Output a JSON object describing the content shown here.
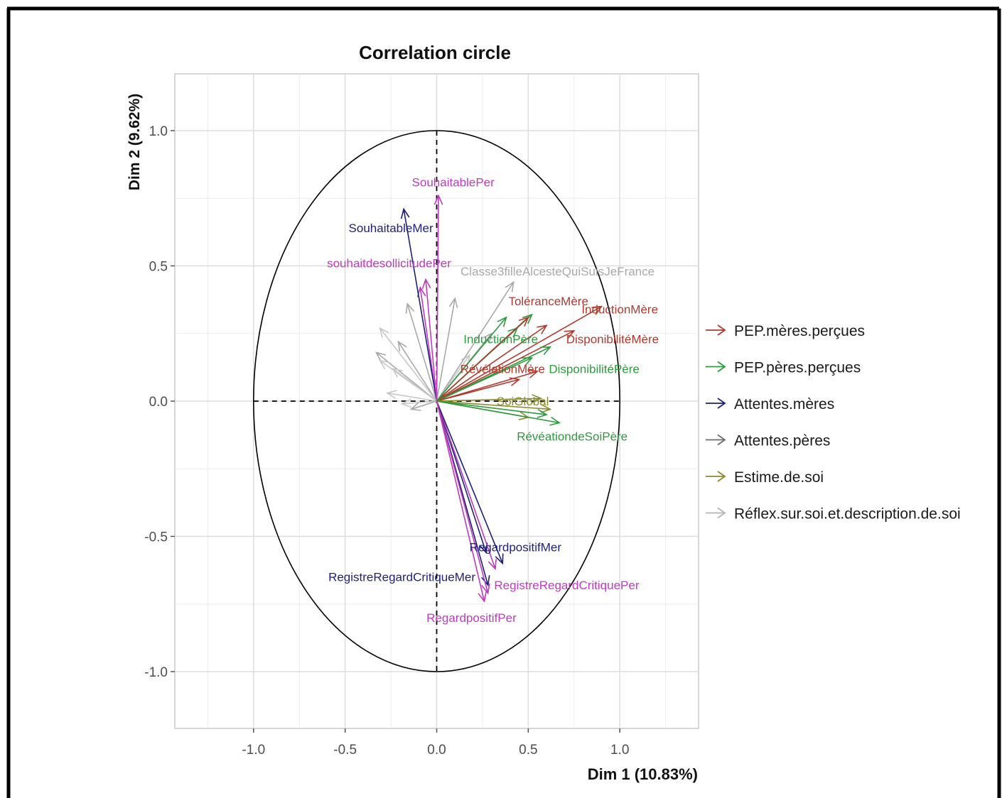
{
  "chart_data": {
    "type": "scatter",
    "title": "Correlation circle",
    "xlabel": "Dim 1 (10.83%)",
    "ylabel": "Dim 2 (9.62%)",
    "xlim": [
      -1.43,
      1.43
    ],
    "ylim": [
      -1.21,
      1.21
    ],
    "x_ticks": [
      "-1.0",
      "-0.5",
      "0.0",
      "0.5",
      "1.0"
    ],
    "y_ticks": [
      "1.0",
      "0.5",
      "0.0",
      "-0.5",
      "-1.0"
    ],
    "grid": true,
    "legend_position": "right",
    "groups": [
      {
        "name": "PEP.mères.perçues",
        "color": "#b03a2e"
      },
      {
        "name": "PEP.pères.perçues",
        "color": "#2e9a3e"
      },
      {
        "name": "Attentes.mères",
        "color": "#1d1f7a"
      },
      {
        "name": "Attentes.pères",
        "color": "#6d6d6d"
      },
      {
        "name": "Estime.de.soi",
        "color": "#8a8a2e"
      },
      {
        "name": "Réflex.sur.soi.et.description.de.soi",
        "color": "#b4b4b4"
      }
    ],
    "variables": [
      {
        "label": "SouhaitablePer",
        "x": 0.01,
        "y": 0.76,
        "color": "#c03ac0",
        "lx": 0.09,
        "ly": 0.81
      },
      {
        "label": "SouhaitableMer",
        "x": -0.18,
        "y": 0.71,
        "color": "#1d1f7a",
        "lx": -0.25,
        "ly": 0.64
      },
      {
        "label": "souhaitdesollicitudePer",
        "x": -0.06,
        "y": 0.45,
        "color": "#c03ac0",
        "lx": -0.26,
        "ly": 0.51
      },
      {
        "label": "Classe3filleAlcesteQuiSuisJeFrance",
        "x": 0.42,
        "y": 0.44,
        "color": "#a9a9a9",
        "lx": 0.66,
        "ly": 0.48
      },
      {
        "label": "ToléranceMère",
        "x": 0.5,
        "y": 0.31,
        "color": "#b03a2e",
        "lx": 0.61,
        "ly": 0.37
      },
      {
        "label": "InductionMère",
        "x": 0.9,
        "y": 0.35,
        "color": "#b03a2e",
        "lx": 1.0,
        "ly": 0.34
      },
      {
        "label": "DisponibilitéMère",
        "x": 0.75,
        "y": 0.26,
        "color": "#b03a2e",
        "lx": 0.96,
        "ly": 0.23
      },
      {
        "label": "InductionPère",
        "x": 0.38,
        "y": 0.31,
        "color": "#2e9a3e",
        "lx": 0.35,
        "ly": 0.23
      },
      {
        "label": "DisponibilitéPère",
        "x": 0.62,
        "y": 0.2,
        "color": "#2e9a3e",
        "lx": 0.86,
        "ly": 0.12
      },
      {
        "label": "RévélationMère",
        "x": 0.55,
        "y": 0.11,
        "color": "#b03a2e",
        "lx": 0.36,
        "ly": 0.12
      },
      {
        "label": "SoiGlobal",
        "x": 0.57,
        "y": 0.01,
        "color": "#8a8a2e",
        "lx": 0.47,
        "ly": 0.0
      },
      {
        "label": "RévéationdeSoiPère",
        "x": 0.67,
        "y": -0.08,
        "color": "#2e9a3e",
        "lx": 0.74,
        "ly": -0.13
      },
      {
        "label": "RegardpositifMer",
        "x": 0.36,
        "y": -0.6,
        "color": "#1d1f7a",
        "lx": 0.43,
        "ly": -0.54
      },
      {
        "label": "RegistreRegardCritiqueMer",
        "x": 0.28,
        "y": -0.68,
        "color": "#1d1f7a",
        "lx": -0.19,
        "ly": -0.65
      },
      {
        "label": "RegistreRegardCritiquePer",
        "x": 0.28,
        "y": -0.71,
        "color": "#c03ac0",
        "lx": 0.71,
        "ly": -0.68
      },
      {
        "label": "RegardpositifPer",
        "x": 0.26,
        "y": -0.74,
        "color": "#c03ac0",
        "lx": 0.19,
        "ly": -0.8
      }
    ],
    "unlabeled_vectors": [
      {
        "x": 0.52,
        "y": 0.32,
        "color": "#2e9a3e"
      },
      {
        "x": 0.44,
        "y": 0.27,
        "color": "#2e9a3e"
      },
      {
        "x": 0.6,
        "y": 0.28,
        "color": "#b03a2e"
      },
      {
        "x": 0.52,
        "y": 0.16,
        "color": "#2e9a3e"
      },
      {
        "x": 0.45,
        "y": 0.08,
        "color": "#b03a2e"
      },
      {
        "x": 0.62,
        "y": -0.03,
        "color": "#8a8a2e"
      },
      {
        "x": 0.5,
        "y": -0.06,
        "color": "#8a8a2e"
      },
      {
        "x": 0.6,
        "y": -0.05,
        "color": "#2e9a3e"
      },
      {
        "x": 0.1,
        "y": 0.38,
        "color": "#a9a9a9"
      },
      {
        "x": 0.3,
        "y": 0.25,
        "color": "#a9a9a9"
      },
      {
        "x": -0.16,
        "y": 0.36,
        "color": "#a9a9a9"
      },
      {
        "x": -0.09,
        "y": 0.42,
        "color": "#c03ac0"
      },
      {
        "x": -0.21,
        "y": 0.22,
        "color": "#a9a9a9"
      },
      {
        "x": -0.31,
        "y": 0.27,
        "color": "#c8c8c8"
      },
      {
        "x": -0.33,
        "y": 0.18,
        "color": "#a9a9a9"
      },
      {
        "x": -0.31,
        "y": 0.15,
        "color": "#c8c8c8"
      },
      {
        "x": -0.24,
        "y": 0.12,
        "color": "#c8c8c8"
      },
      {
        "x": -0.27,
        "y": 0.03,
        "color": "#c8c8c8"
      },
      {
        "x": -0.19,
        "y": -0.01,
        "color": "#c8c8c8"
      },
      {
        "x": -0.14,
        "y": -0.03,
        "color": "#a9a9a9"
      },
      {
        "x": 0.18,
        "y": 0.17,
        "color": "#c8c8c8"
      },
      {
        "x": 0.27,
        "y": -0.56,
        "color": "#1d1f7a"
      },
      {
        "x": 0.32,
        "y": -0.62,
        "color": "#c03ac0"
      }
    ]
  }
}
